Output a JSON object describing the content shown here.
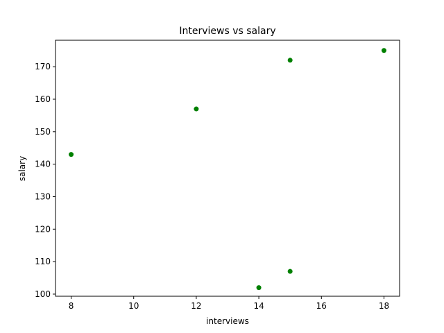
{
  "chart_data": {
    "type": "scatter",
    "title": "Interviews vs salary",
    "xlabel": "interviews",
    "ylabel": "salary",
    "xlim": [
      7.5,
      18.5
    ],
    "ylim": [
      99.35,
      178.15
    ],
    "xticks": [
      8,
      10,
      12,
      14,
      16,
      18
    ],
    "yticks": [
      100,
      110,
      120,
      130,
      140,
      150,
      160,
      170
    ],
    "grid": false,
    "marker_color": "#008000",
    "points": [
      {
        "x": 8,
        "y": 143
      },
      {
        "x": 12,
        "y": 157
      },
      {
        "x": 14,
        "y": 102
      },
      {
        "x": 15,
        "y": 107
      },
      {
        "x": 15,
        "y": 172
      },
      {
        "x": 18,
        "y": 175
      }
    ]
  }
}
